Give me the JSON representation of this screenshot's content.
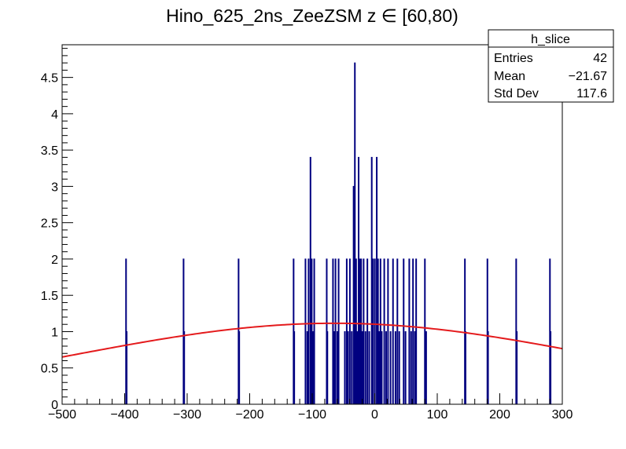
{
  "chart_data": {
    "type": "bar",
    "title": "Hino_625_2ns_ZeeZSM z  ∈ [60,80)",
    "xlabel": "",
    "ylabel": "",
    "xlim": [
      -500,
      300
    ],
    "ylim": [
      0,
      4.95
    ],
    "x_ticks": [
      "−500",
      "−400",
      "−300",
      "−200",
      "−100",
      "0",
      "100",
      "200",
      "300"
    ],
    "y_ticks": [
      "0",
      "0.5",
      "1",
      "1.5",
      "2",
      "2.5",
      "3",
      "3.5",
      "4",
      "4.5"
    ],
    "bin_width": 0.8,
    "bins": [
      {
        "x": -398,
        "y": 2
      },
      {
        "x": -397,
        "y": 1
      },
      {
        "x": -306,
        "y": 2
      },
      {
        "x": -305,
        "y": 1
      },
      {
        "x": -218,
        "y": 2
      },
      {
        "x": -217,
        "y": 1
      },
      {
        "x": -130,
        "y": 2
      },
      {
        "x": -129,
        "y": 1
      },
      {
        "x": -111,
        "y": 2
      },
      {
        "x": -108,
        "y": 1
      },
      {
        "x": -106,
        "y": 2
      },
      {
        "x": -103,
        "y": 3.4
      },
      {
        "x": -101,
        "y": 2
      },
      {
        "x": -99,
        "y": 1
      },
      {
        "x": -97,
        "y": 2
      },
      {
        "x": -77,
        "y": 2
      },
      {
        "x": -76,
        "y": 1
      },
      {
        "x": -67,
        "y": 2
      },
      {
        "x": -65,
        "y": 1
      },
      {
        "x": -63,
        "y": 2
      },
      {
        "x": -60,
        "y": 1
      },
      {
        "x": -58,
        "y": 2
      },
      {
        "x": -48,
        "y": 1
      },
      {
        "x": -45,
        "y": 2
      },
      {
        "x": -43,
        "y": 1
      },
      {
        "x": -40,
        "y": 2
      },
      {
        "x": -37,
        "y": 1
      },
      {
        "x": -34,
        "y": 3
      },
      {
        "x": -32,
        "y": 4.7
      },
      {
        "x": -30,
        "y": 2
      },
      {
        "x": -28,
        "y": 1
      },
      {
        "x": -26,
        "y": 3.4
      },
      {
        "x": -24,
        "y": 2
      },
      {
        "x": -22,
        "y": 2
      },
      {
        "x": -20,
        "y": 1
      },
      {
        "x": -18,
        "y": 2
      },
      {
        "x": -15,
        "y": 1
      },
      {
        "x": -12,
        "y": 2
      },
      {
        "x": -9,
        "y": 1
      },
      {
        "x": -5,
        "y": 3.4
      },
      {
        "x": -3,
        "y": 2
      },
      {
        "x": 0,
        "y": 2
      },
      {
        "x": 3,
        "y": 3.4
      },
      {
        "x": 5,
        "y": 2
      },
      {
        "x": 7,
        "y": 1
      },
      {
        "x": 9,
        "y": 2
      },
      {
        "x": 11,
        "y": 1
      },
      {
        "x": 15,
        "y": 2
      },
      {
        "x": 18,
        "y": 1
      },
      {
        "x": 21,
        "y": 2
      },
      {
        "x": 25,
        "y": 1
      },
      {
        "x": 29,
        "y": 2
      },
      {
        "x": 33,
        "y": 1
      },
      {
        "x": 36,
        "y": 2
      },
      {
        "x": 39,
        "y": 1
      },
      {
        "x": 46,
        "y": 2
      },
      {
        "x": 49,
        "y": 1
      },
      {
        "x": 55,
        "y": 2
      },
      {
        "x": 58,
        "y": 1
      },
      {
        "x": 61,
        "y": 2
      },
      {
        "x": 64,
        "y": 1
      },
      {
        "x": 66,
        "y": 2
      },
      {
        "x": 80,
        "y": 2
      },
      {
        "x": 82,
        "y": 1
      },
      {
        "x": 144,
        "y": 2
      },
      {
        "x": 145,
        "y": 1
      },
      {
        "x": 180,
        "y": 2
      },
      {
        "x": 181,
        "y": 1
      },
      {
        "x": 226,
        "y": 2
      },
      {
        "x": 227,
        "y": 1
      },
      {
        "x": 280,
        "y": 2
      },
      {
        "x": 281,
        "y": 1
      }
    ],
    "fit": {
      "type": "gaussian",
      "constant": 1.115,
      "mean": -64,
      "sigma": 420,
      "x_range": [
        -500,
        300
      ]
    },
    "colors": {
      "histogram": "#000080",
      "fit": "#e41a1c"
    }
  },
  "stats": {
    "name": "h_slice",
    "rows": [
      {
        "label": "Entries",
        "value": "42"
      },
      {
        "label": "Mean",
        "value": "−21.67"
      },
      {
        "label": "Std Dev",
        "value": "117.6"
      }
    ]
  }
}
